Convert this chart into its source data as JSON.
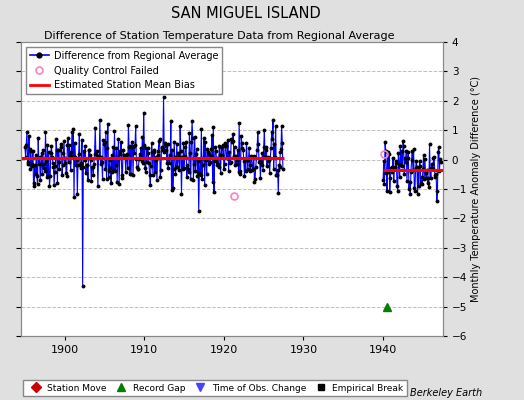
{
  "title": "SAN MIGUEL ISLAND",
  "subtitle": "Difference of Station Temperature Data from Regional Average",
  "ylabel_right": "Monthly Temperature Anomaly Difference (°C)",
  "attribution": "Berkeley Earth",
  "xlim": [
    1894.5,
    1947.5
  ],
  "ylim": [
    -6,
    4
  ],
  "yticks": [
    -6,
    -5,
    -4,
    -3,
    -2,
    -1,
    0,
    1,
    2,
    3,
    4
  ],
  "xticks": [
    1900,
    1910,
    1920,
    1930,
    1940
  ],
  "bg_color": "#e0e0e0",
  "plot_bg_color": "#ffffff",
  "grid_color": "#c0c0c0",
  "bias_level_segment1": 0.05,
  "bias_level_segment2": -0.35,
  "bias_x1_start": 1894.5,
  "bias_x1_end": 1927.5,
  "bias_x2_start": 1940.0,
  "bias_x2_end": 1947.5,
  "seg1_start": 1895.0,
  "seg1_end": 1927.5,
  "seg2_start": 1940.0,
  "seg2_end": 1947.4,
  "record_gap_x": 1940.5,
  "record_gap_y": -5.0,
  "qc_failed_x": 1921.3,
  "qc_failed_y": -1.25,
  "qc_failed_x2": 1940.1,
  "qc_failed_y2": 0.18,
  "seed": 42
}
